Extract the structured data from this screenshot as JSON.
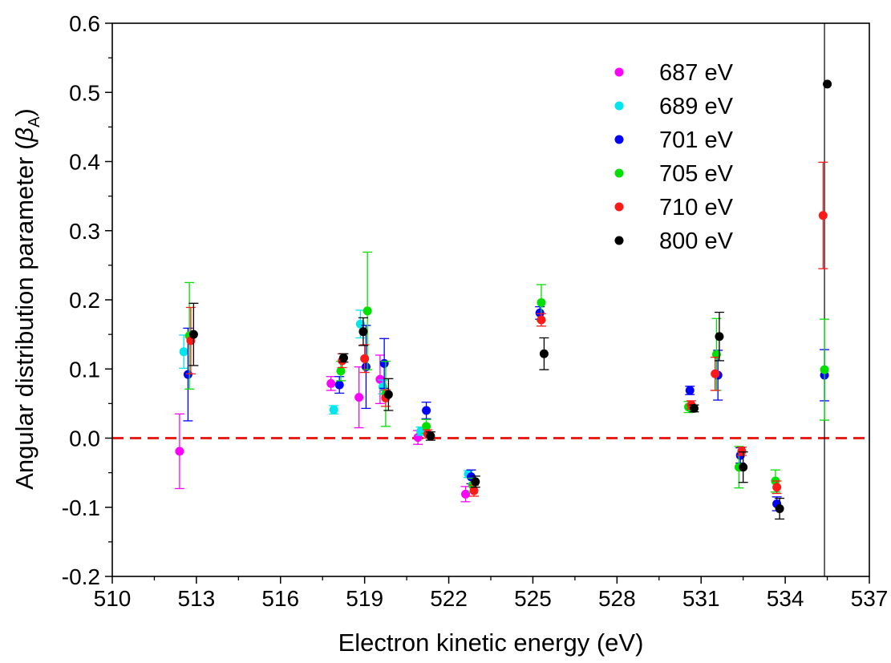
{
  "chart_data": {
    "type": "scatter",
    "title": "",
    "xlabel": "Electron kinetic energy (eV)",
    "ylabel_prefix": "Angular distribution parameter (",
    "ylabel_symbol": "β",
    "ylabel_subscript": "A",
    "ylabel_suffix": ")",
    "xlim": [
      510,
      537
    ],
    "ylim": [
      -0.2,
      0.6
    ],
    "xticks": [
      "510",
      "513",
      "516",
      "519",
      "522",
      "525",
      "528",
      "531",
      "534",
      "537"
    ],
    "yticks": [
      "-0.2",
      "-0.1",
      "0.0",
      "0.1",
      "0.2",
      "0.3",
      "0.4",
      "0.5",
      "0.6"
    ],
    "reference_line": {
      "y": 0.0,
      "color": "#e8201a",
      "style": "dashed"
    },
    "vertical_line": {
      "x": 535.4,
      "color": "#000000"
    },
    "legend_position": "top-right",
    "grid": false,
    "series": [
      {
        "name": "687 eV",
        "color": "#ff00ff",
        "x": [
          512.4,
          517.8,
          518.8,
          519.55,
          520.9,
          522.6
        ],
        "y": [
          -0.019,
          0.079,
          0.059,
          0.085,
          0.001,
          -0.081
        ],
        "err": [
          0.054,
          0.01,
          0.044,
          0.035,
          0.01,
          0.011
        ]
      },
      {
        "name": "689 eV",
        "color": "#00e5ee",
        "x": [
          512.55,
          517.9,
          518.85,
          519.65,
          521.0,
          522.7
        ],
        "y": [
          0.125,
          0.041,
          0.165,
          0.074,
          0.01,
          -0.052
        ],
        "err": [
          0.024,
          0.006,
          0.02,
          0.01,
          0.006,
          0.005
        ]
      },
      {
        "name": "701 eV",
        "color": "#0000ff",
        "x": [
          512.7,
          518.1,
          519.05,
          519.7,
          521.2,
          522.8,
          525.25,
          530.6,
          531.6,
          532.4,
          533.7,
          535.4
        ],
        "y": [
          0.092,
          0.077,
          0.103,
          0.108,
          0.04,
          -0.056,
          0.181,
          0.069,
          0.091,
          -0.025,
          -0.095,
          0.091
        ],
        "err": [
          0.067,
          0.012,
          0.06,
          0.036,
          0.012,
          0.01,
          0.009,
          0.006,
          0.036,
          0.011,
          0.01,
          0.037
        ]
      },
      {
        "name": "705 eV",
        "color": "#00e000",
        "x": [
          512.75,
          518.15,
          519.1,
          519.75,
          521.2,
          522.85,
          525.3,
          530.55,
          531.55,
          532.35,
          533.65,
          535.4
        ],
        "y": [
          0.148,
          0.097,
          0.184,
          0.064,
          0.017,
          -0.068,
          0.196,
          0.045,
          0.121,
          -0.042,
          -0.062,
          0.099
        ],
        "err": [
          0.077,
          0.014,
          0.085,
          0.047,
          0.01,
          0.01,
          0.026,
          0.008,
          0.052,
          0.03,
          0.016,
          0.073
        ]
      },
      {
        "name": "710 eV",
        "color": "#ff1a1a",
        "x": [
          512.8,
          518.2,
          519.0,
          519.75,
          521.25,
          522.9,
          525.3,
          530.65,
          531.5,
          532.45,
          533.7,
          535.35
        ],
        "y": [
          0.141,
          0.112,
          0.115,
          0.058,
          0.006,
          -0.076,
          0.171,
          0.048,
          0.093,
          -0.019,
          -0.071,
          0.322
        ],
        "err": [
          0.048,
          0.01,
          0.02,
          0.012,
          0.006,
          0.008,
          0.009,
          0.006,
          0.024,
          0.006,
          0.009,
          0.077
        ]
      },
      {
        "name": "800 eV",
        "color": "#000000",
        "x": [
          512.9,
          518.25,
          518.95,
          519.85,
          521.35,
          522.95,
          525.4,
          530.75,
          531.65,
          532.5,
          533.8,
          535.5
        ],
        "y": [
          0.15,
          0.116,
          0.154,
          0.063,
          0.003,
          -0.063,
          0.122,
          0.043,
          0.147,
          -0.042,
          -0.102,
          0.512
        ],
        "err": [
          0.045,
          0.006,
          0.02,
          0.023,
          0.006,
          0.008,
          0.023,
          0.005,
          0.035,
          0.022,
          0.015,
          0.0
        ]
      }
    ]
  }
}
